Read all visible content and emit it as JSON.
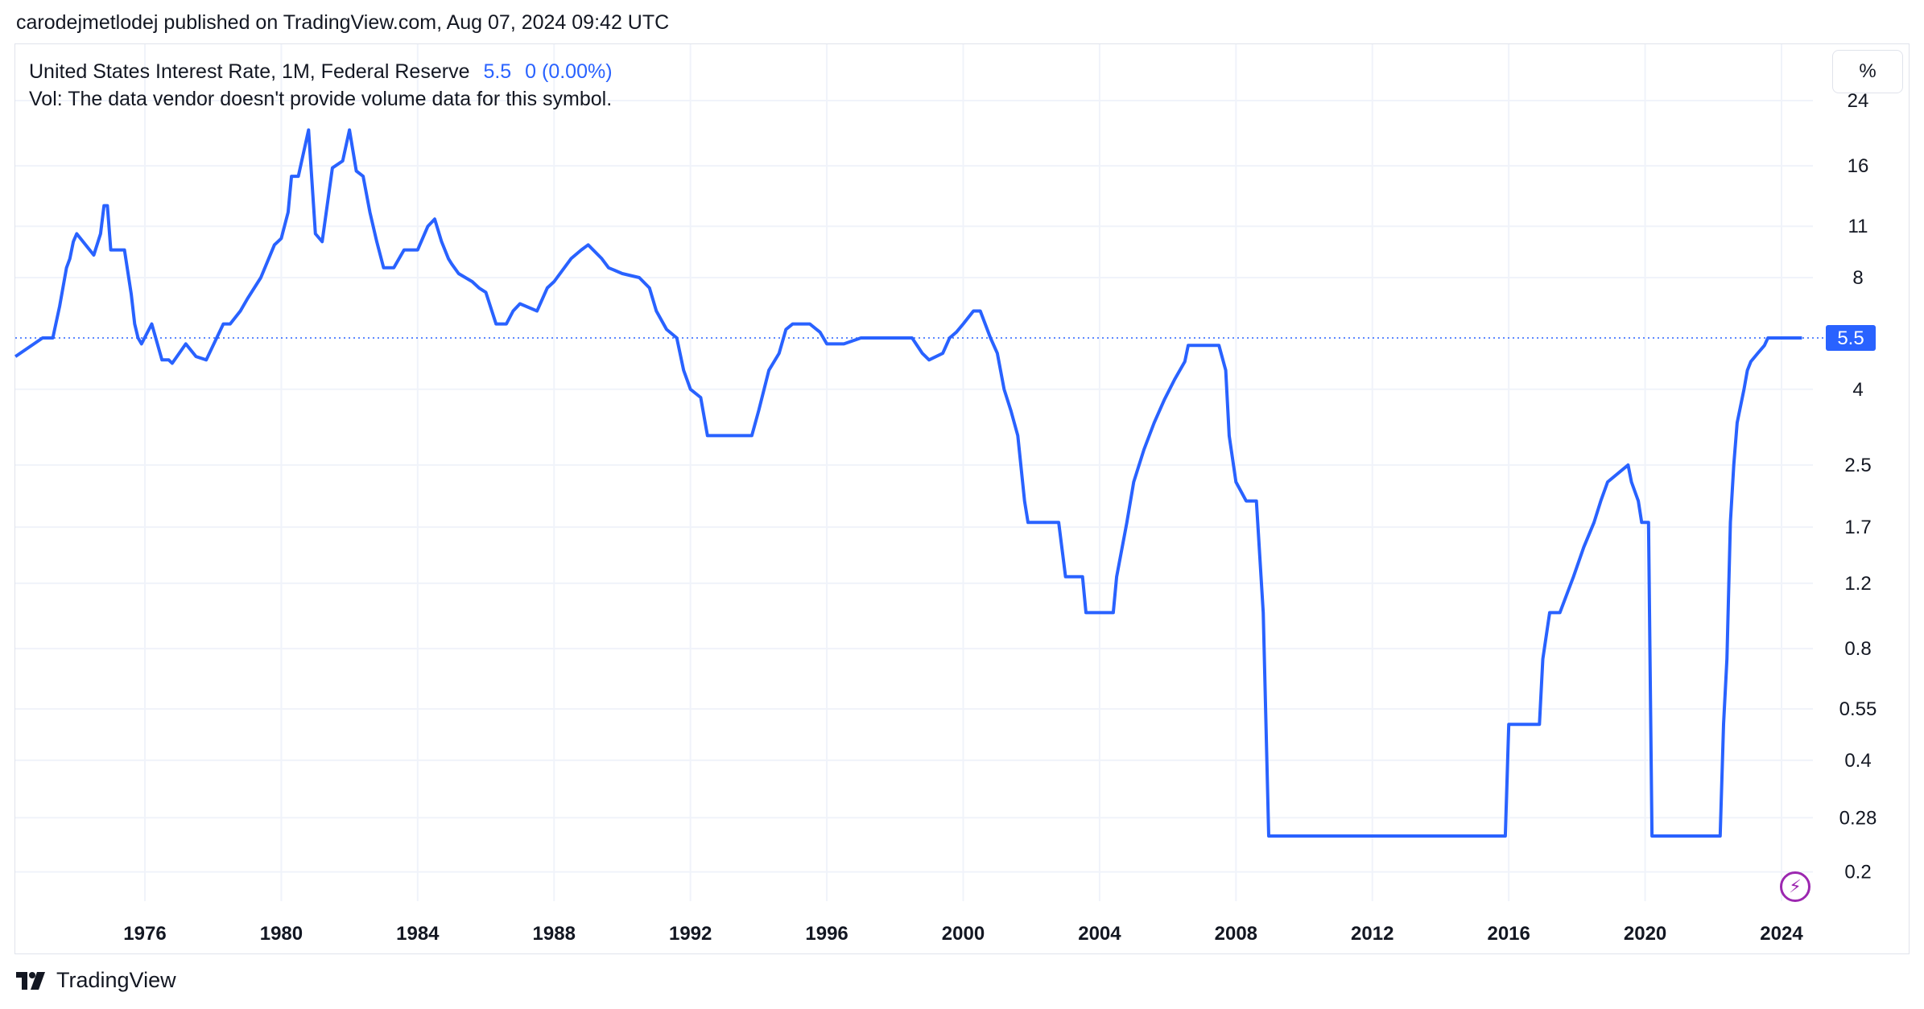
{
  "header": {
    "publish_text": "carodejmetlodej published on TradingView.com, Aug 07, 2024 09:42 UTC"
  },
  "legend": {
    "symbol": "United States Interest Rate, 1M, Federal Reserve",
    "last_value": "5.5",
    "change": "0 (0.00%)",
    "volume_note": "Vol: The data vendor doesn't provide volume data for this symbol."
  },
  "unit_badge": "%",
  "footer": {
    "brand": "TradingView"
  },
  "icons": {
    "bolt": "lightning-bolt-icon",
    "logo": "tradingview-logo-icon"
  },
  "colors": {
    "line": "#2962ff",
    "price_tag": "#2962ff",
    "grid": "#f0f3fa",
    "bolt": "#9c27b0"
  },
  "chart_data": {
    "type": "line",
    "title": "United States Interest Rate, 1M, Federal Reserve",
    "xlabel": "",
    "ylabel": "",
    "y_scale": "log",
    "x_range": [
      1972.2,
      2024.6
    ],
    "x_ticks": [
      "1976",
      "1980",
      "1984",
      "1988",
      "1992",
      "1996",
      "2000",
      "2004",
      "2008",
      "2012",
      "2016",
      "2020",
      "2024"
    ],
    "y_ticks": [
      "0.2",
      "0.28",
      "0.4",
      "0.55",
      "0.8",
      "1.2",
      "1.7",
      "2.5",
      "4",
      "8",
      "11",
      "16",
      "24"
    ],
    "last_value_label": "5.5",
    "grid": true,
    "series": [
      {
        "x": [
          1972.2,
          1973.0,
          1973.3,
          1973.5,
          1973.7,
          1973.8,
          1973.9,
          1974.0,
          1974.5,
          1974.7,
          1974.8,
          1974.9,
          1975.0,
          1975.4,
          1975.6,
          1975.7,
          1975.8,
          1975.9,
          1976.2,
          1976.5,
          1976.7,
          1976.8,
          1977.2,
          1977.5,
          1977.8,
          1978.3,
          1978.5,
          1978.8,
          1979.0,
          1979.4,
          1979.8,
          1979.9,
          1980.0,
          1980.2,
          1980.3,
          1980.5,
          1980.8,
          1981.0,
          1981.2,
          1981.5,
          1981.8,
          1982.0,
          1982.2,
          1982.4,
          1982.6,
          1982.8,
          1983.0,
          1983.3,
          1983.6,
          1984.0,
          1984.3,
          1984.5,
          1984.7,
          1984.9,
          1985.0,
          1985.2,
          1985.4,
          1985.6,
          1985.8,
          1986.0,
          1986.3,
          1986.6,
          1986.8,
          1987.0,
          1987.5,
          1987.8,
          1988.0,
          1988.5,
          1988.8,
          1989.0,
          1989.4,
          1989.6,
          1990.0,
          1990.5,
          1990.8,
          1991.0,
          1991.3,
          1991.6,
          1991.8,
          1992.0,
          1992.3,
          1992.5,
          1993.0,
          1993.8,
          1994.0,
          1994.3,
          1994.6,
          1994.8,
          1995.0,
          1995.5,
          1995.8,
          1996.0,
          1996.5,
          1997.0,
          1997.3,
          1998.0,
          1998.5,
          1998.8,
          1999.0,
          1999.4,
          1999.6,
          1999.8,
          2000.0,
          2000.3,
          2000.5,
          2000.8,
          2001.0,
          2001.2,
          2001.4,
          2001.6,
          2001.8,
          2001.9,
          2002.0,
          2002.8,
          2003.0,
          2003.5,
          2003.6,
          2004.4,
          2004.5,
          2004.8,
          2005.0,
          2005.3,
          2005.6,
          2005.9,
          2006.2,
          2006.5,
          2006.6,
          2007.5,
          2007.7,
          2007.8,
          2008.0,
          2008.3,
          2008.6,
          2008.8,
          2008.96,
          2015.9,
          2016.0,
          2016.9,
          2017.0,
          2017.2,
          2017.5,
          2017.9,
          2018.2,
          2018.5,
          2018.7,
          2018.9,
          2019.5,
          2019.6,
          2019.8,
          2019.9,
          2020.1,
          2020.2,
          2022.2,
          2022.3,
          2022.4,
          2022.5,
          2022.6,
          2022.7,
          2022.9,
          2023.0,
          2023.1,
          2023.3,
          2023.5,
          2023.6,
          2024.6
        ],
        "y": [
          4.9,
          5.5,
          5.5,
          6.7,
          8.5,
          9.0,
          10.0,
          10.5,
          9.2,
          10.5,
          12.5,
          12.5,
          9.5,
          9.5,
          7.2,
          6.0,
          5.5,
          5.3,
          6.0,
          4.8,
          4.8,
          4.7,
          5.3,
          4.9,
          4.8,
          6.0,
          6.0,
          6.5,
          7.0,
          8.0,
          9.8,
          10.0,
          10.2,
          12.0,
          15.0,
          15.0,
          20.0,
          10.5,
          10.0,
          15.8,
          16.5,
          20.0,
          15.5,
          15.0,
          12.0,
          10.0,
          8.5,
          8.5,
          9.5,
          9.5,
          11.0,
          11.5,
          10.0,
          9.0,
          8.7,
          8.2,
          8.0,
          7.8,
          7.5,
          7.3,
          6.0,
          6.0,
          6.5,
          6.8,
          6.5,
          7.5,
          7.8,
          9.0,
          9.5,
          9.8,
          9.0,
          8.5,
          8.2,
          8.0,
          7.5,
          6.5,
          5.8,
          5.5,
          4.5,
          4.0,
          3.8,
          3.0,
          3.0,
          3.0,
          3.5,
          4.5,
          5.0,
          5.8,
          6.0,
          6.0,
          5.7,
          5.3,
          5.3,
          5.5,
          5.5,
          5.5,
          5.5,
          5.0,
          4.8,
          5.0,
          5.5,
          5.7,
          6.0,
          6.5,
          6.5,
          5.5,
          5.0,
          4.0,
          3.5,
          3.0,
          2.0,
          1.75,
          1.75,
          1.75,
          1.25,
          1.25,
          1.0,
          1.0,
          1.25,
          1.75,
          2.25,
          2.75,
          3.25,
          3.75,
          4.25,
          4.75,
          5.25,
          5.25,
          4.5,
          3.0,
          2.25,
          2.0,
          2.0,
          1.0,
          0.25,
          0.25,
          0.5,
          0.5,
          0.75,
          1.0,
          1.0,
          1.25,
          1.5,
          1.75,
          2.0,
          2.25,
          2.5,
          2.25,
          2.0,
          1.75,
          1.75,
          0.25,
          0.25,
          0.5,
          0.75,
          1.75,
          2.5,
          3.25,
          4.0,
          4.5,
          4.75,
          5.0,
          5.25,
          5.5,
          5.5
        ]
      }
    ]
  }
}
